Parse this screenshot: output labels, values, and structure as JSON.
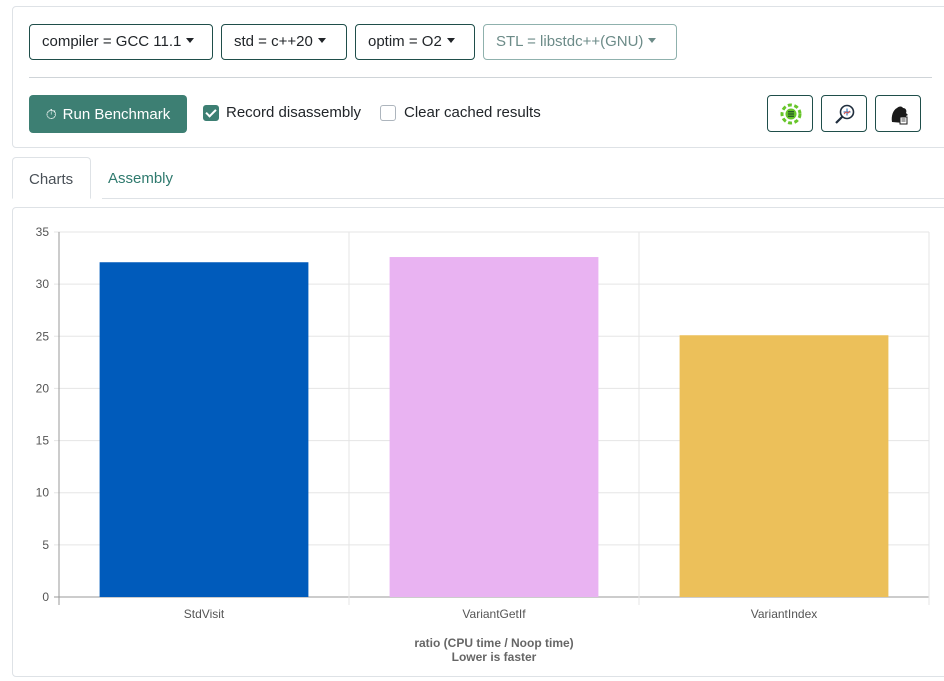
{
  "toolbar": {
    "compiler_dropdown": "compiler = GCC 11.1",
    "std_dropdown": "std = c++20",
    "optim_dropdown": "optim = O2",
    "stl_dropdown": "STL = libstdc++(GNU)",
    "run_label": "Run Benchmark",
    "record_label": "Record disassembly",
    "record_checked": true,
    "clear_label": "Clear cached results",
    "clear_checked": false,
    "accent_color": "#3d7f73"
  },
  "tabs": [
    "Charts",
    "Assembly"
  ],
  "icons": [
    "timer-icon",
    "compiler-explorer-icon",
    "zoom-compare-icon",
    "quick-bench-icon"
  ],
  "chart_data": {
    "type": "bar",
    "categories": [
      "StdVisit",
      "VariantGetIf",
      "VariantIndex"
    ],
    "values": [
      32.1,
      32.6,
      25.1
    ],
    "colors": [
      "#005bbb",
      "#e9b3f2",
      "#ecc05a"
    ],
    "ylim": [
      0,
      35
    ],
    "yticks": [
      0,
      5,
      10,
      15,
      20,
      25,
      30,
      35
    ],
    "xlabel_line1": "ratio (CPU time / Noop time)",
    "xlabel_line2": "Lower is faster",
    "grid": true
  }
}
